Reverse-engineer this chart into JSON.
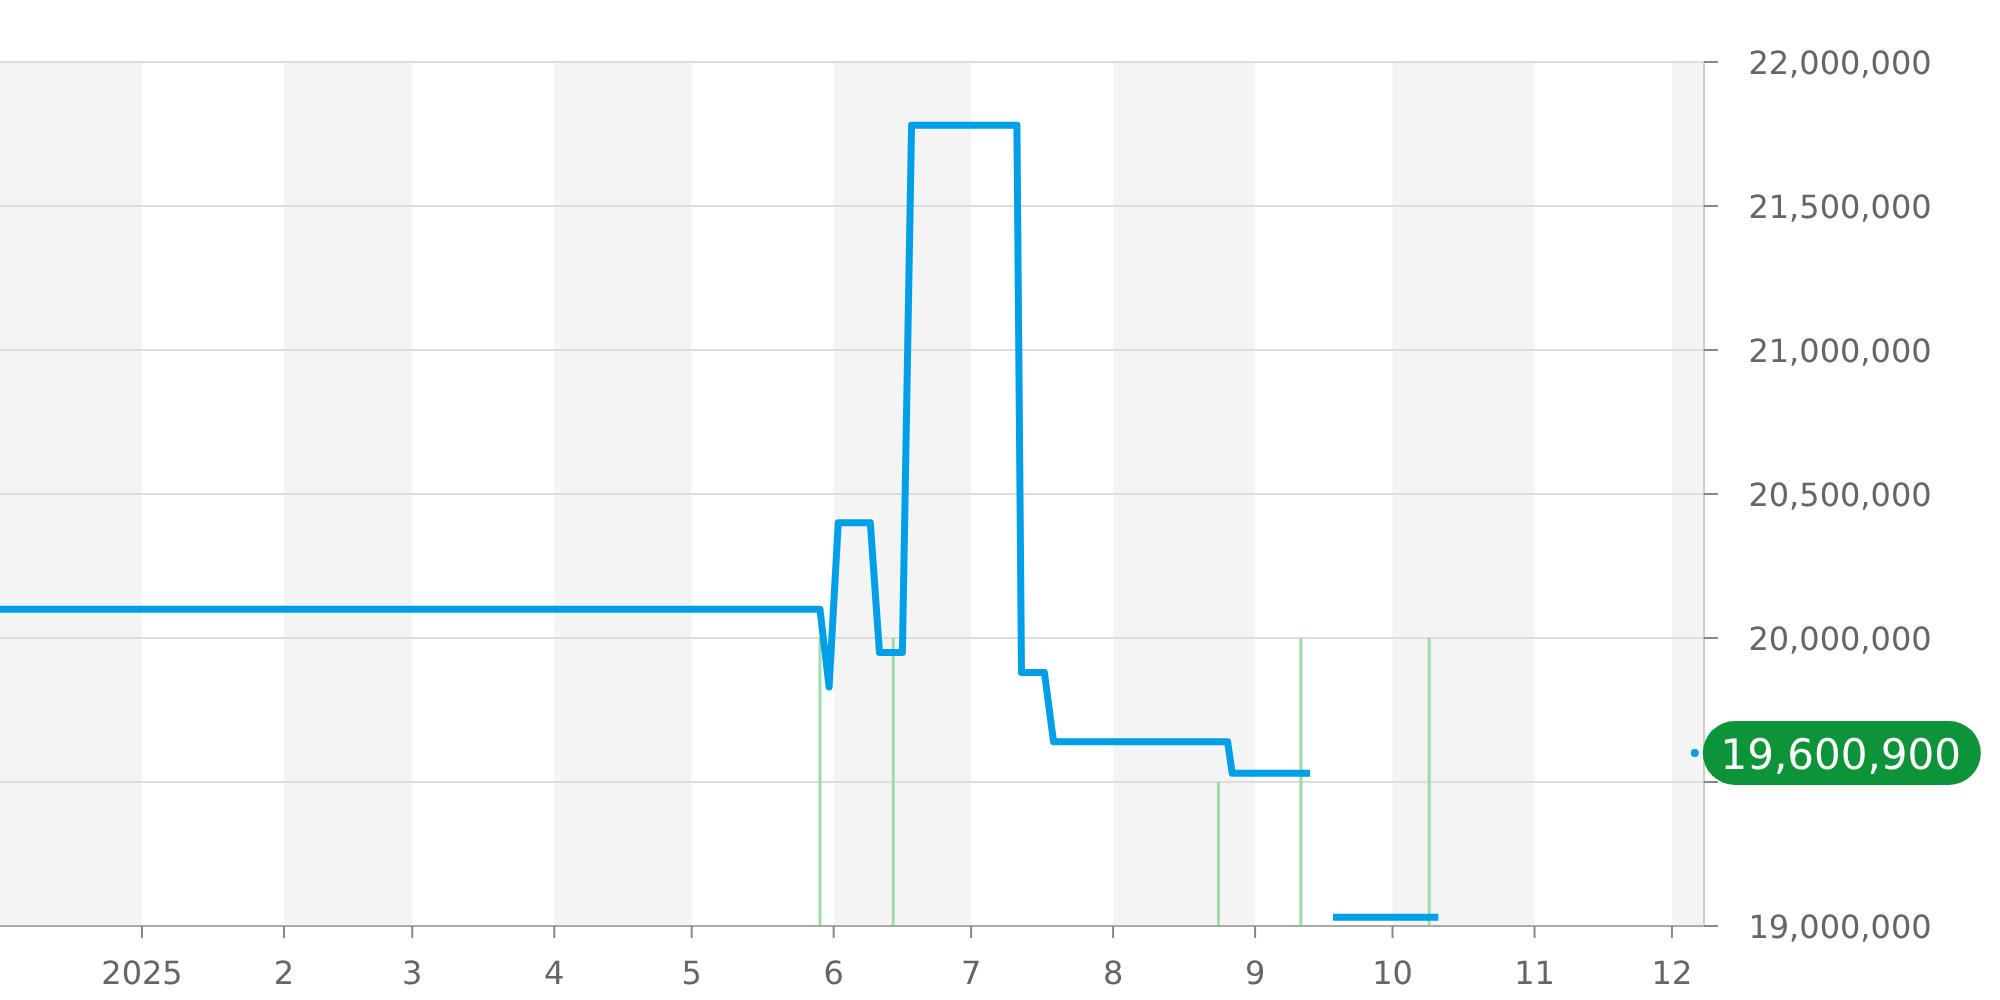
{
  "chart_data": {
    "type": "line",
    "series": [
      {
        "color": "#009fe8",
        "x": [
          "2024-12-01",
          "2025-05-29",
          "2025-05-31",
          "2025-06-02",
          "2025-06-09",
          "2025-06-11",
          "2025-06-16",
          "2025-06-18",
          "2025-07-11",
          "2025-07-12",
          "2025-07-17",
          "2025-07-19",
          "2025-08-26",
          "2025-08-27",
          "2025-09-13",
          "2025-09-15",
          "2025-09-18",
          "2025-10-11"
        ],
        "values": [
          20100000,
          20100000,
          19830000,
          20400000,
          20400000,
          19950000,
          19950000,
          21780000,
          21780000,
          19880000,
          19880000,
          19640000,
          19640000,
          19530000,
          19530000,
          null,
          19030000,
          19030000
        ]
      },
      {
        "type": "bar",
        "color": "#9fdca6",
        "x": [
          "2025-05-29",
          "2025-06-14",
          "2025-08-24",
          "2025-09-11",
          "2025-10-09"
        ],
        "values": [
          20000000,
          20000000,
          19500000,
          20000000,
          20000000
        ]
      },
      {
        "type": "scatter",
        "color": "#009fe8",
        "x": [
          "2025-12-06"
        ],
        "values": [
          19600900
        ]
      }
    ],
    "xlim": [
      "2024-12-01",
      "2025-12-08"
    ],
    "xticks": [
      {
        "value": "2025-01-01",
        "label": "2025"
      },
      {
        "value": "2025-02-01",
        "label": "2"
      },
      {
        "value": "2025-03-01",
        "label": "3"
      },
      {
        "value": "2025-04-01",
        "label": "4"
      },
      {
        "value": "2025-05-01",
        "label": "5"
      },
      {
        "value": "2025-06-01",
        "label": "6"
      },
      {
        "value": "2025-07-01",
        "label": "7"
      },
      {
        "value": "2025-08-01",
        "label": "8"
      },
      {
        "value": "2025-09-01",
        "label": "9"
      },
      {
        "value": "2025-10-01",
        "label": "10"
      },
      {
        "value": "2025-11-01",
        "label": "11"
      },
      {
        "value": "2025-12-01",
        "label": "12"
      }
    ],
    "ylim": [
      19000000,
      22000000
    ],
    "yticks": [
      {
        "value": 19000000,
        "label": "19,000,000"
      },
      {
        "value": 19500000,
        "label": null
      },
      {
        "value": 20000000,
        "label": "20,000,000"
      },
      {
        "value": 20500000,
        "label": "20,500,000"
      },
      {
        "value": 21000000,
        "label": "21,000,000"
      },
      {
        "value": 21500000,
        "label": "21,500,000"
      },
      {
        "value": 22000000,
        "label": "22,000,000"
      }
    ],
    "grid": "y",
    "annotations": [
      {
        "text": "19,600,900",
        "x": "2025-12-06",
        "y": 19600900
      }
    ]
  }
}
